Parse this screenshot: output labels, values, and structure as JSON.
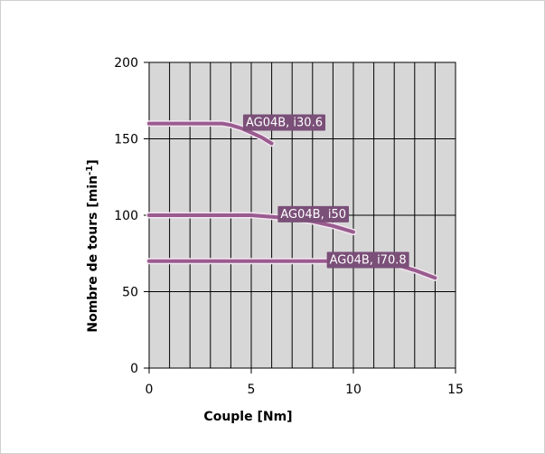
{
  "chart_data": {
    "type": "line",
    "title": "",
    "xlabel": "Couple [Nm]",
    "ylabel": "Nombre de tours  [min",
    "ylabel_sup": "-1",
    "ylabel_tail": "]",
    "xlim": [
      0,
      15
    ],
    "ylim": [
      0,
      200
    ],
    "x_ticks": [
      0,
      5,
      10,
      15
    ],
    "y_ticks": [
      0,
      50,
      100,
      150,
      200
    ],
    "grid": true,
    "series": [
      {
        "name": "AG04B, i30.6",
        "x": [
          0,
          1,
          2,
          3,
          3.6,
          4,
          4.5,
          5,
          5.5,
          6
        ],
        "y": [
          160,
          160,
          160,
          160,
          160,
          159,
          157,
          154,
          151,
          147
        ]
      },
      {
        "name": "AG04B, i50",
        "x": [
          0,
          2,
          4,
          5,
          6,
          7,
          8,
          9,
          10
        ],
        "y": [
          100,
          100,
          100,
          100,
          99,
          98,
          96,
          93,
          89
        ]
      },
      {
        "name": "AG04B, i70.8",
        "x": [
          0,
          2,
          4,
          6,
          8,
          10,
          11,
          12,
          13,
          14
        ],
        "y": [
          70,
          70,
          70,
          70,
          70,
          70,
          70,
          68,
          64,
          59
        ]
      }
    ],
    "colors": {
      "plot_background": "#d7d7d7",
      "grid": "#000000",
      "line": "#9a5b8f",
      "label_background": "#7a4f78"
    }
  }
}
